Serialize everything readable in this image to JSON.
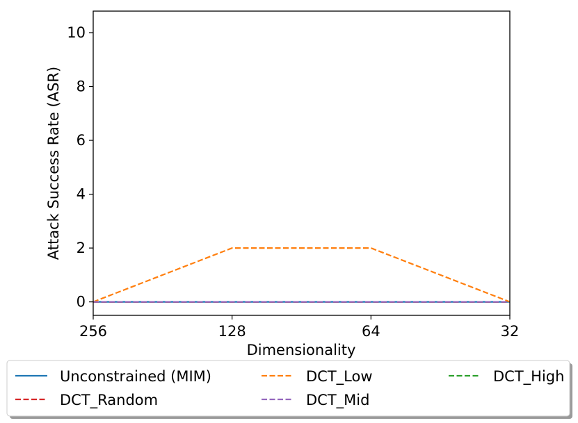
{
  "chart_data": {
    "type": "line",
    "xlabel": "Dimensionality",
    "ylabel": "Attack Success Rate (ASR)",
    "categories": [
      "256",
      "128",
      "64",
      "32"
    ],
    "ylim": [
      -0.5,
      10.8
    ],
    "yticks": [
      0,
      2,
      4,
      6,
      8,
      10
    ],
    "grid": false,
    "legend_placement": "bottom-center",
    "series": [
      {
        "name": "Unconstrained (MIM)",
        "values": [
          0,
          0,
          0,
          0
        ],
        "color": "#1f77b4",
        "dash": "solid"
      },
      {
        "name": "DCT_Low",
        "values": [
          0,
          2,
          2,
          0
        ],
        "color": "#ff7f0e",
        "dash": "dashed"
      },
      {
        "name": "DCT_High",
        "values": [
          0,
          0,
          0,
          0
        ],
        "color": "#2ca02c",
        "dash": "dashed"
      },
      {
        "name": "DCT_Random",
        "values": [
          0,
          0,
          0,
          0
        ],
        "color": "#d62728",
        "dash": "dashed"
      },
      {
        "name": "DCT_Mid",
        "values": [
          0,
          0,
          0,
          0
        ],
        "color": "#9467bd",
        "dash": "dashed"
      }
    ]
  }
}
